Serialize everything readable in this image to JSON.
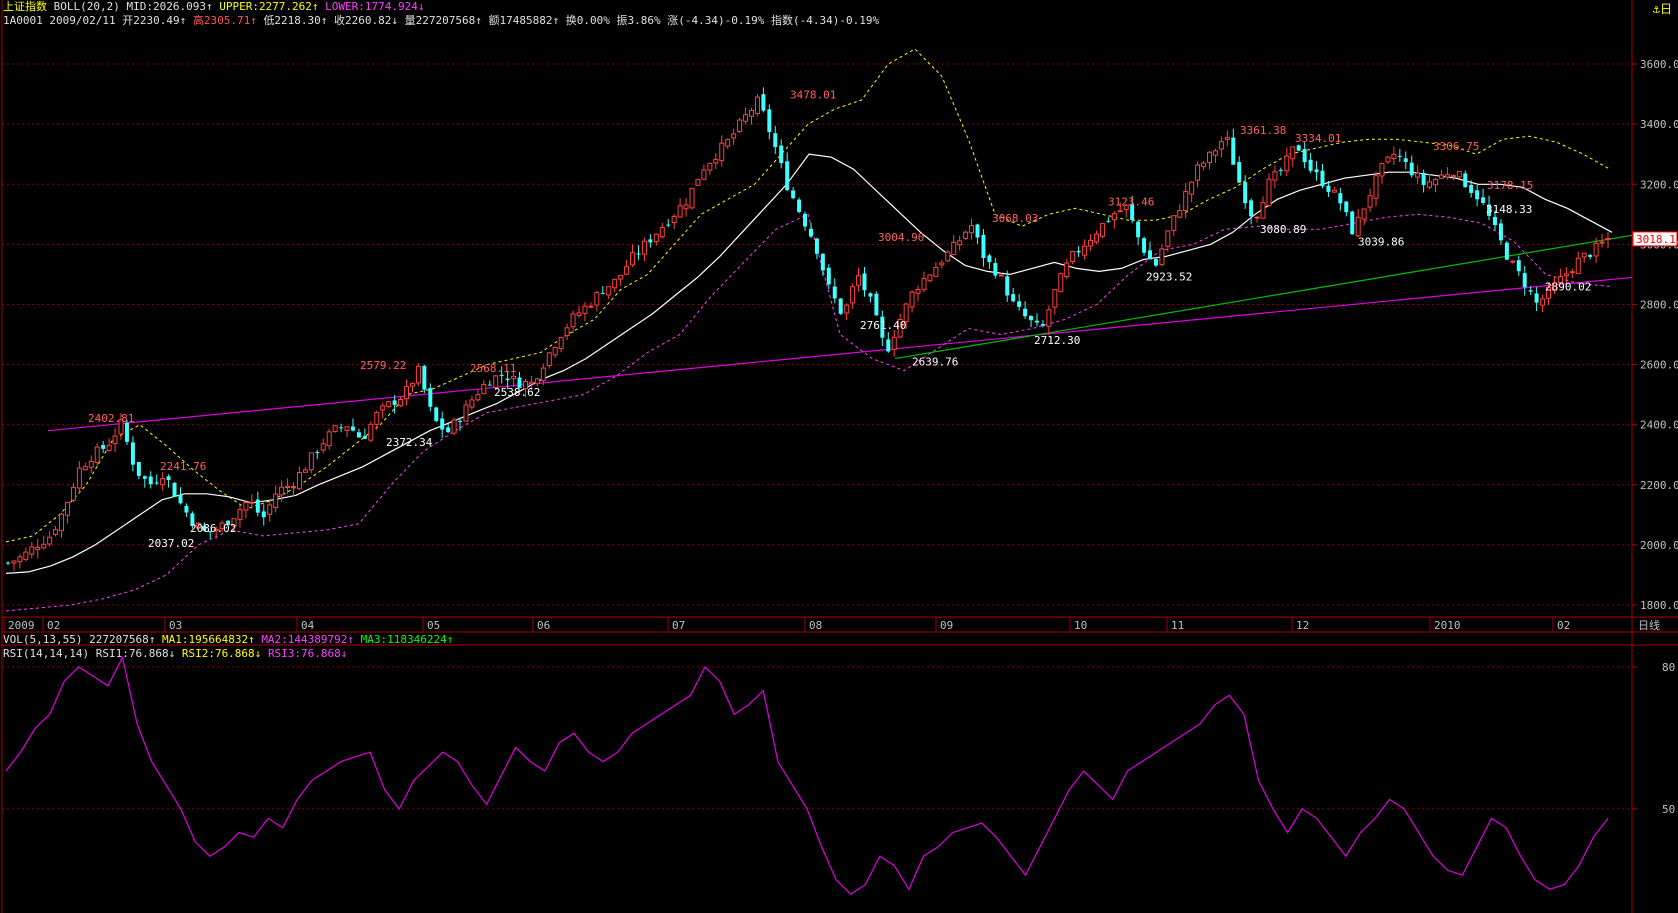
{
  "header": {
    "index_name": "上证指数",
    "indicator": "BOLL(20,2)",
    "mid": "MID:2026.093↑",
    "upper": "UPPER:2277.262↑",
    "lower": "LOWER:1774.924↓",
    "code_date": "1A0001 2009/02/11",
    "open": "开2230.49↑",
    "high": "高2305.71↑",
    "low": "低2218.30↑",
    "close": "收2260.82↓",
    "volume": "量227207568↑",
    "amount": "额17485882↑",
    "turnover": "换0.00%",
    "amplitude": "振3.86%",
    "change": "涨(-4.34)-0.19%",
    "index_change": "指数(-4.34)-0.19%"
  },
  "top_icons": "⚓日",
  "period_label": "日线",
  "price_tag": "3018.1",
  "vol_header": {
    "label": "VOL(5,13,55)",
    "vol": "227207568↑",
    "ma1": "MA1:195664832↑",
    "ma2": "MA2:144389792↑",
    "ma3": "MA3:118346224↑"
  },
  "rsi_header": {
    "label": "RSI(14,14,14)",
    "rsi1": "RSI1:76.868↓",
    "rsi2": "RSI2:76.868↓",
    "rsi3": "RSI3:76.868↓"
  },
  "colors": {
    "up": "#ff4040",
    "down": "#40ffff",
    "mid": "#ffffff",
    "upper": "#ffff00",
    "lower": "#ff40ff",
    "grid": "#8a0000",
    "trend_green": "#00c000",
    "trend_magenta": "#e000e0",
    "rsi": "#e000e0"
  },
  "chart_data": [
    {
      "type": "candlestick",
      "title": "上证指数",
      "ylim": [
        1760,
        3700
      ],
      "y_ticks": [
        "1800.00",
        "2000.00",
        "2200.00",
        "2400.00",
        "2600.00",
        "2800.00",
        "3000.00",
        "3200.00",
        "3400.00",
        "3600.00"
      ],
      "x_labels": [
        "2009",
        "02",
        "03",
        "04",
        "05",
        "06",
        "07",
        "08",
        "09",
        "10",
        "11",
        "12",
        "2010",
        "02"
      ],
      "close_path": [
        1940,
        1960,
        2000,
        2030,
        2120,
        2250,
        2300,
        2330,
        2402,
        2250,
        2200,
        2241,
        2150,
        2080,
        2037,
        2060,
        2100,
        2150,
        2086,
        2180,
        2200,
        2260,
        2330,
        2380,
        2400,
        2350,
        2430,
        2470,
        2500,
        2579,
        2420,
        2372,
        2430,
        2500,
        2550,
        2568,
        2540,
        2538,
        2620,
        2700,
        2760,
        2800,
        2850,
        2880,
        2950,
        3000,
        3050,
        3100,
        3150,
        3250,
        3300,
        3350,
        3420,
        3478,
        3350,
        3200,
        3100,
        3004,
        2850,
        2761,
        2900,
        2800,
        2639,
        2750,
        2850,
        2900,
        2950,
        3000,
        3068,
        2950,
        2900,
        2800,
        2750,
        2712,
        2850,
        2950,
        3000,
        3050,
        3100,
        3123,
        3000,
        2923,
        3050,
        3150,
        3250,
        3300,
        3361,
        3200,
        3080,
        3200,
        3250,
        3334,
        3250,
        3200,
        3150,
        3039,
        3150,
        3250,
        3306,
        3250,
        3200,
        3220,
        3250,
        3200,
        3148,
        3050,
        2950,
        2880,
        2800,
        2850,
        2900,
        2950,
        2980,
        3018
      ],
      "mid_path": [
        1905,
        1910,
        1930,
        1960,
        2000,
        2050,
        2100,
        2150,
        2170,
        2170,
        2160,
        2140,
        2150,
        2165,
        2200,
        2230,
        2260,
        2300,
        2340,
        2380,
        2410,
        2440,
        2470,
        2510,
        2550,
        2580,
        2620,
        2670,
        2720,
        2770,
        2830,
        2890,
        2960,
        3040,
        3120,
        3200,
        3300,
        3290,
        3250,
        3180,
        3110,
        3040,
        2980,
        2930,
        2910,
        2900,
        2920,
        2940,
        2920,
        2910,
        2920,
        2950,
        2960,
        2980,
        3000,
        3040,
        3100,
        3150,
        3180,
        3200,
        3220,
        3230,
        3240,
        3240,
        3230,
        3220,
        3200,
        3200,
        3190,
        3150,
        3120,
        3080,
        3040
      ],
      "upper_path": [
        2010,
        2030,
        2100,
        2200,
        2350,
        2400,
        2330,
        2250,
        2180,
        2120,
        2150,
        2200,
        2260,
        2330,
        2400,
        2500,
        2520,
        2560,
        2600,
        2620,
        2640,
        2700,
        2750,
        2850,
        2900,
        3000,
        3100,
        3150,
        3200,
        3300,
        3400,
        3450,
        3480,
        3600,
        3650,
        3560,
        3350,
        3100,
        3060,
        3100,
        3120,
        3100,
        3080,
        3080,
        3100,
        3150,
        3190,
        3250,
        3300,
        3320,
        3340,
        3350,
        3350,
        3340,
        3330,
        3300,
        3350,
        3360,
        3340,
        3300,
        3250
      ],
      "lower_path": [
        1780,
        1790,
        1800,
        1820,
        1850,
        1900,
        2000,
        2050,
        2030,
        2040,
        2050,
        2070,
        2200,
        2310,
        2380,
        2440,
        2460,
        2480,
        2500,
        2560,
        2640,
        2700,
        2830,
        2940,
        3050,
        3100,
        2700,
        2620,
        2580,
        2650,
        2720,
        2700,
        2720,
        2750,
        2800,
        2900,
        2980,
        3000,
        3050,
        3060,
        3050,
        3050,
        3070,
        3090,
        3100,
        3090,
        3070,
        3010,
        2900,
        2870,
        2860
      ],
      "annotations_high": [
        "2402.81",
        "2241.76",
        "2579.22",
        "2568.11",
        "3478.01",
        "3004.90",
        "3068.03",
        "3123.46",
        "3361.38",
        "3334.01",
        "3306.75",
        "3178.15"
      ],
      "annotations_low": [
        "2037.02",
        "2086.02",
        "2372.34",
        "2538.62",
        "2761.40",
        "2639.76",
        "2712.30",
        "2923.52",
        "3080.89",
        "3039.86",
        "3148.33",
        "2890.02"
      ]
    },
    {
      "type": "line",
      "title": "RSI(14,14,14)",
      "y_ticks": [
        "80",
        "50"
      ],
      "ylim": [
        28,
        84
      ],
      "values": [
        58,
        62,
        67,
        70,
        77,
        80,
        78,
        76,
        82,
        68,
        60,
        55,
        50,
        43,
        40,
        42,
        45,
        44,
        48,
        46,
        52,
        56,
        58,
        60,
        61,
        62,
        54,
        50,
        56,
        59,
        62,
        60,
        55,
        51,
        57,
        63,
        60,
        58,
        64,
        66,
        62,
        60,
        62,
        66,
        68,
        70,
        72,
        74,
        80,
        77,
        70,
        72,
        75,
        60,
        55,
        50,
        42,
        35,
        32,
        34,
        40,
        38,
        33,
        40,
        42,
        45,
        46,
        47,
        44,
        40,
        36,
        42,
        48,
        54,
        58,
        55,
        52,
        58,
        60,
        62,
        64,
        66,
        68,
        72,
        74,
        70,
        56,
        50,
        45,
        50,
        48,
        44,
        40,
        45,
        48,
        52,
        50,
        45,
        40,
        37,
        36,
        42,
        48,
        46,
        40,
        35,
        33,
        34,
        38,
        44,
        48
      ],
      "series_name": "RSI1"
    }
  ]
}
